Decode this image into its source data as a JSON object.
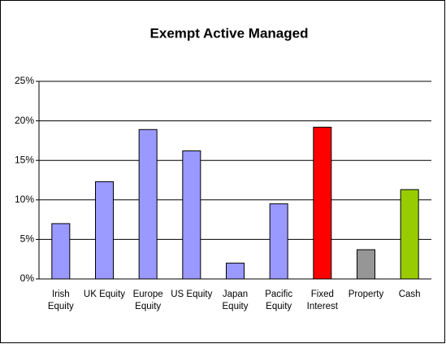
{
  "chart_data": {
    "type": "bar",
    "title": "Exempt Active Managed",
    "categories": [
      "Irish Equity",
      "UK Equity",
      "Europe Equity",
      "US Equity",
      "Japan Equity",
      "Pacific Equity",
      "Fixed Interest",
      "Property",
      "Cash"
    ],
    "values": [
      7,
      12.3,
      18.9,
      16.2,
      2,
      9.5,
      19.2,
      3.7,
      11.3
    ],
    "colors": [
      "#9999ff",
      "#9999ff",
      "#9999ff",
      "#9999ff",
      "#9999ff",
      "#9999ff",
      "#ff0000",
      "#969696",
      "#99cc00"
    ],
    "ylim": [
      0,
      25
    ],
    "yticks": [
      {
        "value": 0,
        "label": "0%"
      },
      {
        "value": 5,
        "label": "5%"
      },
      {
        "value": 10,
        "label": "10%"
      },
      {
        "value": 15,
        "label": "15%"
      },
      {
        "value": 20,
        "label": "20%"
      },
      {
        "value": 25,
        "label": "25%"
      }
    ],
    "grid": true
  }
}
